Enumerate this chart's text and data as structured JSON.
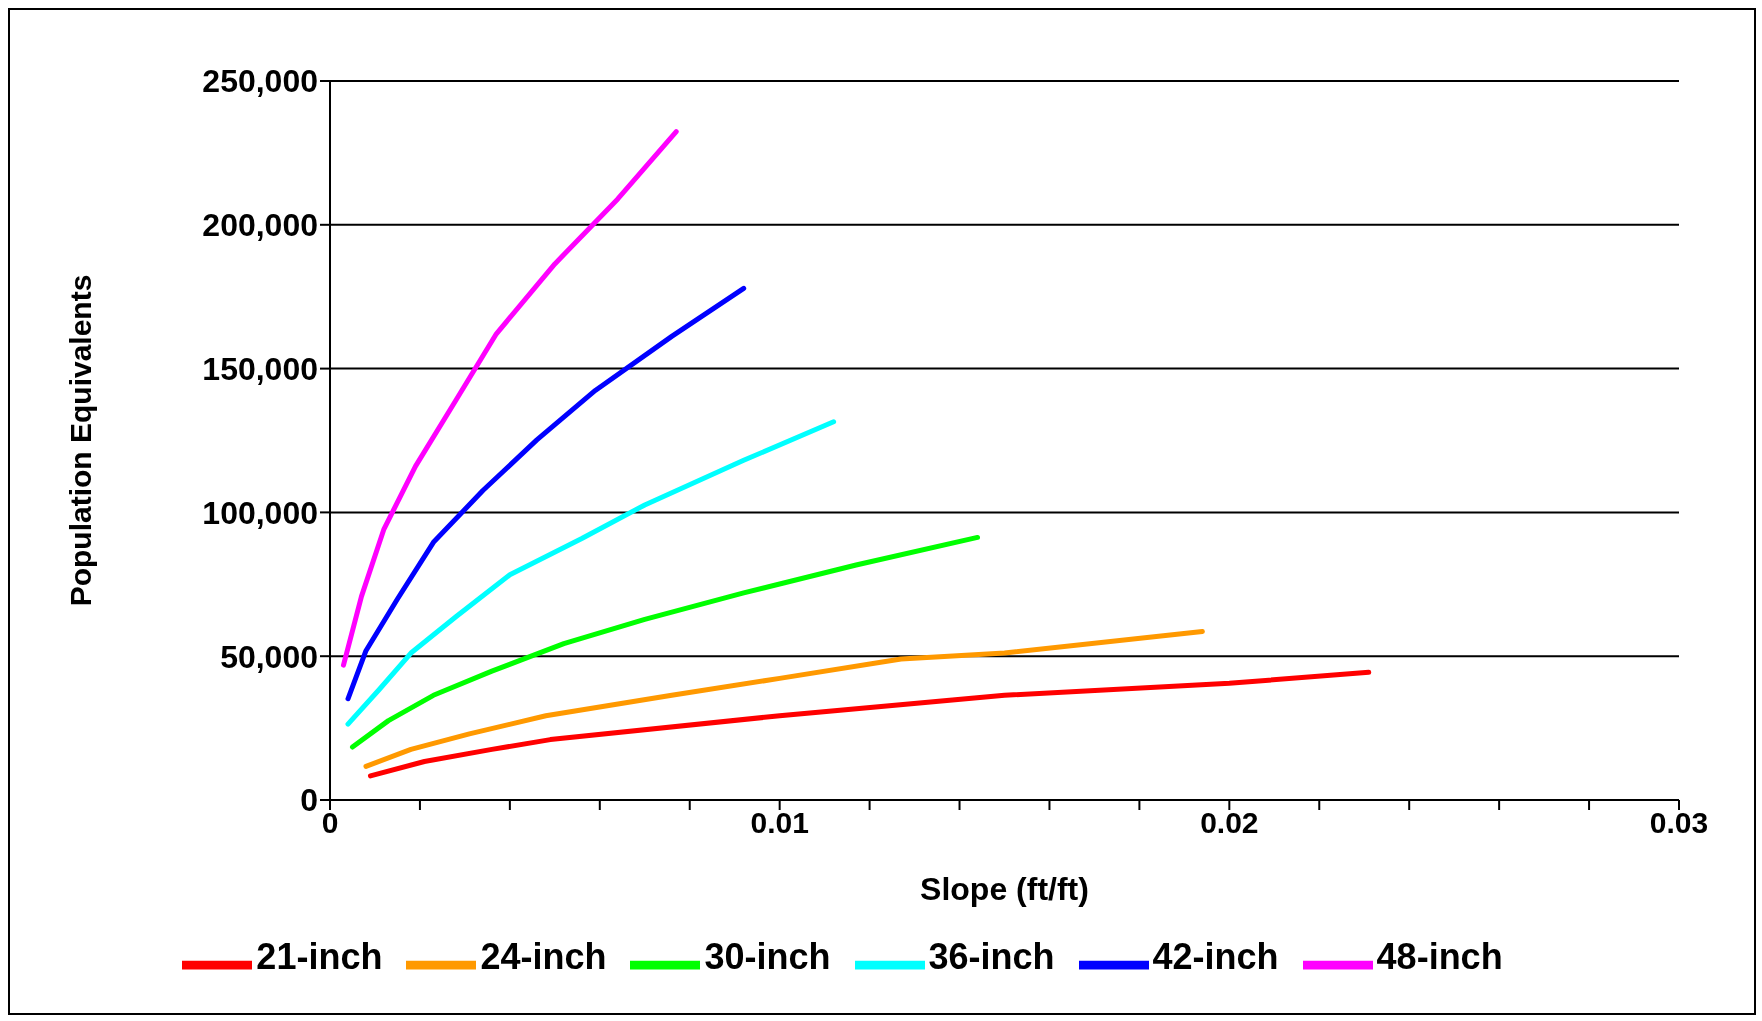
{
  "chart_data": {
    "type": "line",
    "xlabel": "Slope (ft/ft)",
    "ylabel": "Population Equivalents",
    "xlim": [
      0,
      0.03
    ],
    "xticks": [
      0,
      {
        "value": 0.002,
        "label": null
      },
      {
        "value": 0.004,
        "label": null
      },
      {
        "value": 0.006,
        "label": null
      },
      {
        "value": 0.008,
        "label": null
      },
      0.01,
      {
        "value": 0.012,
        "label": null
      },
      {
        "value": 0.014,
        "label": null
      },
      {
        "value": 0.016,
        "label": null
      },
      {
        "value": 0.018,
        "label": null
      },
      0.02,
      {
        "value": 0.022,
        "label": null
      },
      {
        "value": 0.024,
        "label": null
      },
      {
        "value": 0.026,
        "label": null
      },
      {
        "value": 0.028,
        "label": null
      },
      0.03
    ],
    "ylim": [
      0,
      250000
    ],
    "yticks": [
      {
        "value": 0,
        "label": "0"
      },
      {
        "value": 50000,
        "label": "50,000"
      },
      {
        "value": 100000,
        "label": "100,000"
      },
      {
        "value": 150000,
        "label": "150,000"
      },
      {
        "value": 200000,
        "label": "200,000"
      },
      {
        "value": 250000,
        "label": "250,000"
      }
    ],
    "grid": "y",
    "legend": "bottom",
    "marker": "none",
    "line_style": "solid",
    "series": [
      {
        "name": "21-inch",
        "color": "#ff0000",
        "x": [
          0.0009,
          0.0021,
          0.0036,
          0.0049,
          0.01,
          0.015,
          0.02,
          0.0231
        ],
        "values": [
          8400,
          13400,
          17600,
          21000,
          29300,
          36400,
          40600,
          44400
        ]
      },
      {
        "name": "24-inch",
        "color": "#ff9900",
        "x": [
          0.0008,
          0.0018,
          0.0031,
          0.0048,
          0.0076,
          0.01,
          0.0127,
          0.015,
          0.0194
        ],
        "values": [
          11700,
          17600,
          23000,
          29300,
          36400,
          42300,
          49000,
          51100,
          58600
        ]
      },
      {
        "name": "30-inch",
        "color": "#00ff00",
        "x": [
          0.0005,
          0.0013,
          0.0023,
          0.0036,
          0.0052,
          0.007,
          0.0092,
          0.0117,
          0.0144
        ],
        "values": [
          18400,
          27600,
          36400,
          44800,
          54400,
          62800,
          72000,
          81700,
          91300
        ]
      },
      {
        "name": "36-inch",
        "color": "#00ffff",
        "x": [
          0.0004,
          0.0011,
          0.0018,
          0.0028,
          0.004,
          0.0056,
          0.007,
          0.0092,
          0.0112
        ],
        "values": [
          26400,
          38500,
          51100,
          63700,
          78300,
          90900,
          102600,
          118100,
          131500
        ]
      },
      {
        "name": "42-inch",
        "color": "#0000ff",
        "x": [
          0.0004,
          0.0008,
          0.0015,
          0.0023,
          0.0034,
          0.0046,
          0.0059,
          0.0076,
          0.0092
        ],
        "values": [
          35200,
          51900,
          69900,
          89600,
          107600,
          125200,
          142400,
          161200,
          177900
        ]
      },
      {
        "name": "48-inch",
        "color": "#ff00ff",
        "x": [
          0.0003,
          0.0007,
          0.0012,
          0.0019,
          0.0028,
          0.0037,
          0.005,
          0.0064,
          0.0077
        ],
        "values": [
          46900,
          70800,
          94200,
          116000,
          139000,
          162100,
          186400,
          209000,
          232400
        ]
      }
    ]
  }
}
